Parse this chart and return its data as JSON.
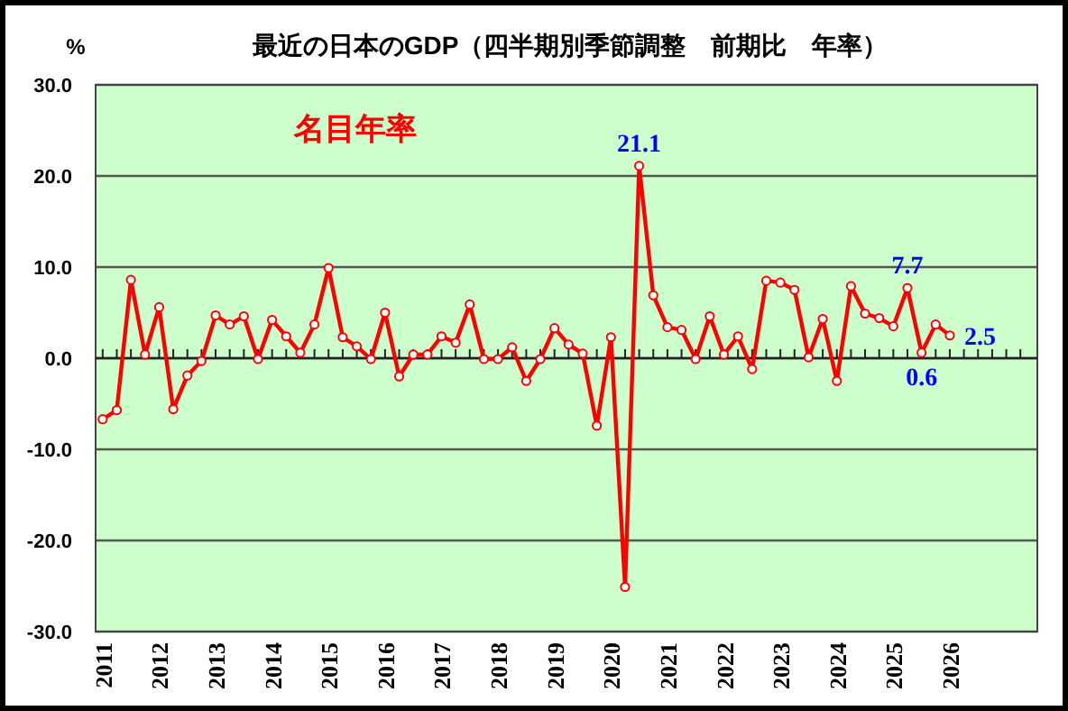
{
  "chart_data": {
    "type": "line",
    "title": "最近の日本のGDP（四半期別季節調整　前期比　年率）",
    "ylabel": "%",
    "x": [
      2011,
      2011.25,
      2011.5,
      2011.75,
      2012,
      2012.25,
      2012.5,
      2012.75,
      2013,
      2013.25,
      2013.5,
      2013.75,
      2014,
      2014.25,
      2014.5,
      2014.75,
      2015,
      2015.25,
      2015.5,
      2015.75,
      2016,
      2016.25,
      2016.5,
      2016.75,
      2017,
      2017.25,
      2017.5,
      2017.75,
      2018,
      2018.25,
      2018.5,
      2018.75,
      2019,
      2019.25,
      2019.5,
      2019.75,
      2020,
      2020.25,
      2020.5,
      2020.75,
      2021,
      2021.25,
      2021.5,
      2021.75,
      2022,
      2022.25,
      2022.5,
      2022.75,
      2023,
      2023.25,
      2023.5,
      2023.75,
      2024,
      2024.25,
      2024.5,
      2024.75,
      2025,
      2025.25,
      2025.5,
      2025.75,
      2026
    ],
    "series": [
      {
        "name": "名目年率",
        "color": "#ff0000",
        "values": [
          -6.7,
          -5.7,
          8.6,
          0.4,
          5.6,
          -5.6,
          -1.9,
          -0.3,
          4.7,
          3.7,
          4.6,
          -0.1,
          4.2,
          2.4,
          0.6,
          3.7,
          9.9,
          2.3,
          1.3,
          -0.1,
          5.0,
          -2.0,
          0.4,
          0.4,
          2.4,
          1.7,
          5.9,
          -0.1,
          -0.1,
          1.2,
          -2.5,
          -0.1,
          3.3,
          1.5,
          0.5,
          -7.4,
          2.3,
          -25.1,
          21.1,
          6.9,
          3.4,
          3.1,
          -0.1,
          4.6,
          0.4,
          2.4,
          -1.2,
          8.5,
          8.3,
          7.5,
          0.1,
          4.3,
          -2.5,
          7.9,
          4.9,
          4.4,
          3.5,
          7.7,
          0.6,
          3.7,
          2.5
        ],
        "value_labels": [
          null,
          null,
          null,
          null,
          null,
          null,
          null,
          null,
          null,
          null,
          null,
          null,
          null,
          null,
          null,
          null,
          null,
          null,
          null,
          null,
          null,
          null,
          null,
          null,
          null,
          null,
          null,
          null,
          null,
          null,
          null,
          null,
          null,
          null,
          null,
          null,
          null,
          null,
          "21.1",
          null,
          null,
          null,
          null,
          null,
          null,
          null,
          null,
          null,
          null,
          null,
          null,
          null,
          null,
          null,
          null,
          null,
          null,
          "7.7",
          "0.6",
          null,
          "2.5"
        ]
      }
    ],
    "xlim": [
      2010.875,
      2027.55
    ],
    "xticks": [
      2011,
      {
        "value": 2011.25,
        "label": null
      },
      {
        "value": 2011.5,
        "label": null
      },
      {
        "value": 2011.75,
        "label": null
      },
      2012,
      {
        "value": 2012.25,
        "label": null
      },
      {
        "value": 2012.5,
        "label": null
      },
      {
        "value": 2012.75,
        "label": null
      },
      2013,
      {
        "value": 2013.25,
        "label": null
      },
      {
        "value": 2013.5,
        "label": null
      },
      {
        "value": 2013.75,
        "label": null
      },
      2014,
      {
        "value": 2014.25,
        "label": null
      },
      {
        "value": 2014.5,
        "label": null
      },
      {
        "value": 2014.75,
        "label": null
      },
      2015,
      {
        "value": 2015.25,
        "label": null
      },
      {
        "value": 2015.5,
        "label": null
      },
      {
        "value": 2015.75,
        "label": null
      },
      2016,
      {
        "value": 2016.25,
        "label": null
      },
      {
        "value": 2016.5,
        "label": null
      },
      {
        "value": 2016.75,
        "label": null
      },
      2017,
      {
        "value": 2017.25,
        "label": null
      },
      {
        "value": 2017.5,
        "label": null
      },
      {
        "value": 2017.75,
        "label": null
      },
      2018,
      {
        "value": 2018.25,
        "label": null
      },
      {
        "value": 2018.5,
        "label": null
      },
      {
        "value": 2018.75,
        "label": null
      },
      2019,
      {
        "value": 2019.25,
        "label": null
      },
      {
        "value": 2019.5,
        "label": null
      },
      {
        "value": 2019.75,
        "label": null
      },
      2020,
      {
        "value": 2020.25,
        "label": null
      },
      {
        "value": 2020.5,
        "label": null
      },
      {
        "value": 2020.75,
        "label": null
      },
      2021,
      {
        "value": 2021.25,
        "label": null
      },
      {
        "value": 2021.5,
        "label": null
      },
      {
        "value": 2021.75,
        "label": null
      },
      2022,
      {
        "value": 2022.25,
        "label": null
      },
      {
        "value": 2022.5,
        "label": null
      },
      {
        "value": 2022.75,
        "label": null
      },
      2023,
      {
        "value": 2023.25,
        "label": null
      },
      {
        "value": 2023.5,
        "label": null
      },
      {
        "value": 2023.75,
        "label": null
      },
      2024,
      {
        "value": 2024.25,
        "label": null
      },
      {
        "value": 2024.5,
        "label": null
      },
      {
        "value": 2024.75,
        "label": null
      },
      2025,
      {
        "value": 2025.25,
        "label": null
      },
      {
        "value": 2025.5,
        "label": null
      },
      {
        "value": 2025.75,
        "label": null
      },
      2026,
      {
        "value": 2026.25,
        "label": null
      },
      {
        "value": 2026.5,
        "label": null
      },
      {
        "value": 2026.75,
        "label": null
      },
      {
        "value": 2027,
        "label": null
      },
      {
        "value": 2027.25,
        "label": null
      }
    ],
    "ylim": [
      -30,
      30
    ],
    "yticks": [
      {
        "value": -30,
        "label": "-30.0"
      },
      {
        "value": -20,
        "label": "-20.0"
      },
      {
        "value": -10,
        "label": "-10.0"
      },
      {
        "value": 0,
        "label": "0.0"
      },
      {
        "value": 10,
        "label": "10.0"
      },
      {
        "value": 20,
        "label": "20.0"
      },
      {
        "value": 30,
        "label": "30.0"
      }
    ],
    "grid": "y",
    "legend": "top left",
    "marker": "circle",
    "line_style": "solid"
  }
}
